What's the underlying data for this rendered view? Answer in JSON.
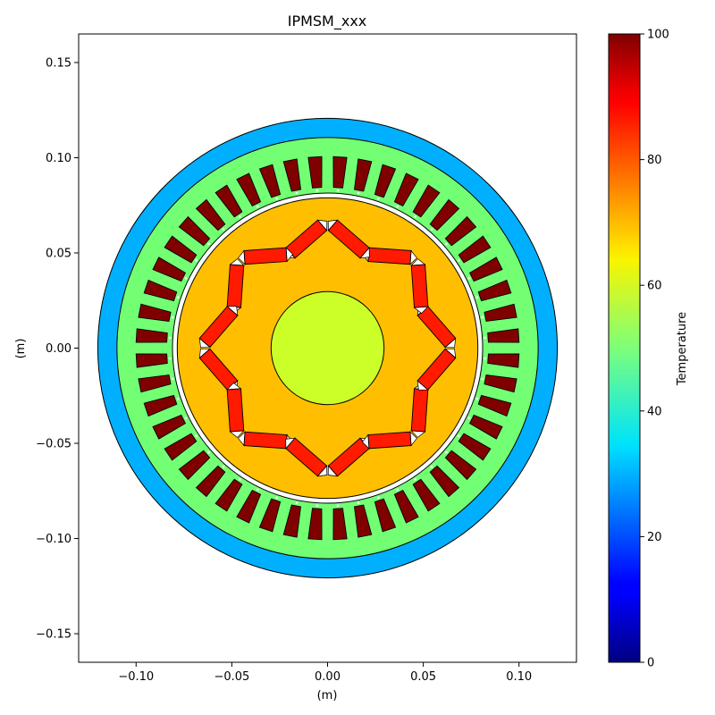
{
  "title": "IPMSM_xxx",
  "xlabel": "(m)",
  "ylabel": "(m)",
  "xticks": [
    {
      "value": -0.1,
      "label": "−0.10"
    },
    {
      "value": -0.05,
      "label": "−0.05"
    },
    {
      "value": 0.0,
      "label": "0.00"
    },
    {
      "value": 0.05,
      "label": "0.05"
    },
    {
      "value": 0.1,
      "label": "0.10"
    }
  ],
  "yticks": [
    {
      "value": 0.15,
      "label": "0.15"
    },
    {
      "value": 0.1,
      "label": "0.10"
    },
    {
      "value": 0.05,
      "label": "0.05"
    },
    {
      "value": 0.0,
      "label": "0.00"
    },
    {
      "value": -0.05,
      "label": "−0.05"
    },
    {
      "value": -0.1,
      "label": "−0.10"
    },
    {
      "value": -0.15,
      "label": "−0.15"
    }
  ],
  "xlim": [
    -0.13,
    0.13
  ],
  "ylim": [
    -0.165,
    0.165
  ],
  "colorbar": {
    "label": "Temperature",
    "min": 0,
    "max": 100,
    "colormap": "jet",
    "ticks": [
      {
        "value": 0,
        "label": "0"
      },
      {
        "value": 20,
        "label": "20"
      },
      {
        "value": 40,
        "label": "40"
      },
      {
        "value": 60,
        "label": "60"
      },
      {
        "value": 80,
        "label": "80"
      },
      {
        "value": 100,
        "label": "100"
      }
    ]
  },
  "geometry": {
    "housing_outer_radius": 0.12,
    "stator_outer_radius": 0.11,
    "stator_inner_radius": 0.081,
    "rotor_outer_radius": 0.0785,
    "shaft_radius": 0.0295,
    "slot_count": 48,
    "slot_inner_radius": 0.084,
    "slot_outer_radius": 0.1,
    "pole_count": 8,
    "magnet_length": 0.022,
    "magnet_width": 0.0072,
    "magnet_center_radius": 0.058,
    "magnet_v_half_angle_deg": 30
  },
  "parts": {
    "housing": {
      "temperature": 29,
      "color": "#00b0ff"
    },
    "stator_core": {
      "temperature": 46,
      "color": "#73ff73"
    },
    "stator_winding": {
      "temperature": 100,
      "color": "#800000"
    },
    "rotor_core": {
      "temperature": 72,
      "color": "#ffbf00"
    },
    "magnet": {
      "temperature": 88,
      "color": "#ff1a00"
    },
    "shaft": {
      "temperature": 58,
      "color": "#ccff28"
    },
    "flux_barrier": {
      "color": "#ffffff"
    },
    "air_gap": {
      "color": "#ffffff"
    }
  }
}
